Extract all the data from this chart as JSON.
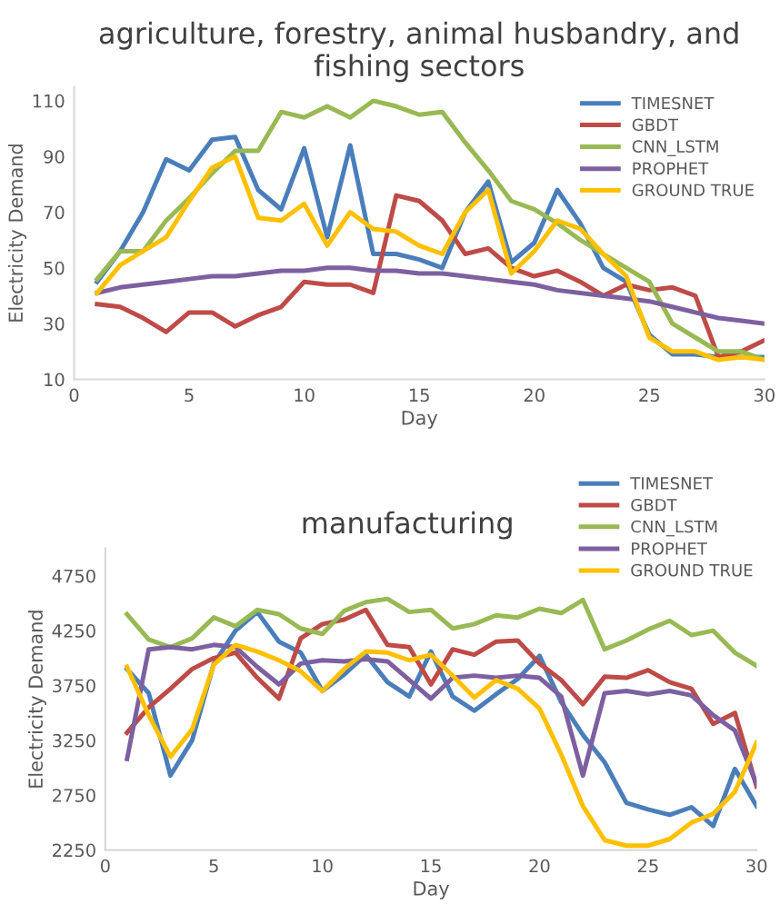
{
  "chart_data": [
    {
      "type": "line",
      "title": "agriculture, forestry, animal husbandry, and fishing sectors",
      "xlabel": "Day",
      "ylabel": "Electricity Demand",
      "x": [
        1,
        2,
        3,
        4,
        5,
        6,
        7,
        8,
        9,
        10,
        11,
        12,
        13,
        14,
        15,
        16,
        17,
        18,
        19,
        20,
        21,
        22,
        23,
        24,
        25,
        26,
        27,
        28,
        29,
        30
      ],
      "xlim": [
        0,
        30
      ],
      "xticks": [
        0,
        5,
        10,
        15,
        20,
        25,
        30
      ],
      "ylim": [
        10,
        115
      ],
      "yticks": [
        10,
        30,
        50,
        70,
        90,
        110
      ],
      "grid": false,
      "legend": "top right",
      "marker": "none",
      "line_style": "solid",
      "series": [
        {
          "name": "TIMESNET",
          "color": "#4a7ebb",
          "values": [
            45,
            56,
            70,
            89,
            85,
            96,
            97,
            78,
            71,
            93,
            61,
            94,
            55,
            55,
            53,
            50,
            70,
            81,
            52,
            59,
            78,
            66,
            50,
            45,
            26,
            19,
            19,
            18,
            18,
            18
          ]
        },
        {
          "name": "GBDT",
          "color": "#be4b48",
          "values": [
            37,
            36,
            32,
            27,
            34,
            34,
            29,
            33,
            36,
            45,
            44,
            44,
            41,
            76,
            74,
            67,
            55,
            57,
            50,
            47,
            49,
            45,
            40,
            44,
            42,
            43,
            40,
            18,
            20,
            24
          ]
        },
        {
          "name": "CNN_LSTM",
          "color": "#98b954",
          "values": [
            46,
            56,
            56,
            67,
            75,
            84,
            92,
            92,
            106,
            104,
            108,
            104,
            110,
            108,
            105,
            106,
            95,
            85,
            74,
            71,
            66,
            60,
            55,
            50,
            45,
            30,
            25,
            20,
            20,
            17
          ]
        },
        {
          "name": "PROPHET",
          "color": "#7d60a0",
          "values": [
            41,
            43,
            44,
            45,
            46,
            47,
            47,
            48,
            49,
            49,
            50,
            50,
            49,
            49,
            48,
            48,
            47,
            46,
            45,
            44,
            42,
            41,
            40,
            39,
            38,
            36,
            34,
            32,
            31,
            30
          ]
        },
        {
          "name": "GROUND TRUE",
          "color": "#ffc000",
          "values": [
            41,
            51,
            56,
            61,
            74,
            86,
            90,
            68,
            67,
            73,
            58,
            70,
            64,
            63,
            58,
            55,
            70,
            78,
            48,
            56,
            67,
            64,
            55,
            47,
            25,
            20,
            20,
            17,
            18,
            17
          ]
        }
      ]
    },
    {
      "type": "line",
      "title": "manufacturing",
      "xlabel": "Day",
      "ylabel": "Electricity Demand",
      "x": [
        1,
        2,
        3,
        4,
        5,
        6,
        7,
        8,
        9,
        10,
        11,
        12,
        13,
        14,
        15,
        16,
        17,
        18,
        19,
        20,
        21,
        22,
        23,
        24,
        25,
        26,
        27,
        28,
        29,
        30
      ],
      "xlim": [
        0,
        30
      ],
      "xticks": [
        0,
        5,
        10,
        15,
        20,
        25,
        30
      ],
      "ylim": [
        2250,
        5000
      ],
      "yticks": [
        2250,
        2750,
        3250,
        3750,
        4250,
        4750
      ],
      "grid": false,
      "legend": "top right",
      "marker": "none",
      "line_style": "solid",
      "series": [
        {
          "name": "TIMESNET",
          "color": "#4a7ebb",
          "values": [
            3900,
            3680,
            2930,
            3250,
            3950,
            4250,
            4420,
            4150,
            4050,
            3700,
            3850,
            4030,
            3780,
            3650,
            4060,
            3650,
            3520,
            3670,
            3810,
            4020,
            3600,
            3300,
            3050,
            2680,
            2620,
            2570,
            2640,
            2470,
            2990,
            2650
          ]
        },
        {
          "name": "GBDT",
          "color": "#be4b48",
          "values": [
            3320,
            3550,
            3720,
            3900,
            4000,
            4050,
            3820,
            3630,
            4180,
            4310,
            4350,
            4440,
            4120,
            4100,
            3760,
            4080,
            4030,
            4150,
            4160,
            3950,
            3800,
            3580,
            3830,
            3820,
            3890,
            3780,
            3720,
            3400,
            3500,
            2830
          ]
        },
        {
          "name": "CNN_LSTM",
          "color": "#98b954",
          "values": [
            4400,
            4170,
            4100,
            4180,
            4370,
            4290,
            4440,
            4400,
            4270,
            4220,
            4430,
            4510,
            4540,
            4420,
            4440,
            4270,
            4310,
            4390,
            4370,
            4450,
            4410,
            4530,
            4080,
            4160,
            4260,
            4340,
            4210,
            4250,
            4050,
            3930
          ]
        },
        {
          "name": "PROPHET",
          "color": "#7d60a0",
          "values": [
            3080,
            4080,
            4100,
            4080,
            4120,
            4100,
            3920,
            3760,
            3950,
            3980,
            3970,
            3990,
            3970,
            3800,
            3630,
            3820,
            3840,
            3820,
            3840,
            3820,
            3650,
            2930,
            3680,
            3700,
            3670,
            3700,
            3660,
            3480,
            3340,
            2850
          ]
        },
        {
          "name": "GROUND TRUE",
          "color": "#ffc000",
          "values": [
            3920,
            3480,
            3100,
            3350,
            3940,
            4120,
            4060,
            3980,
            3880,
            3700,
            3900,
            4060,
            4050,
            3980,
            4030,
            3840,
            3640,
            3800,
            3720,
            3540,
            3120,
            2650,
            2340,
            2290,
            2290,
            2350,
            2500,
            2580,
            2780,
            3230
          ]
        }
      ]
    }
  ]
}
